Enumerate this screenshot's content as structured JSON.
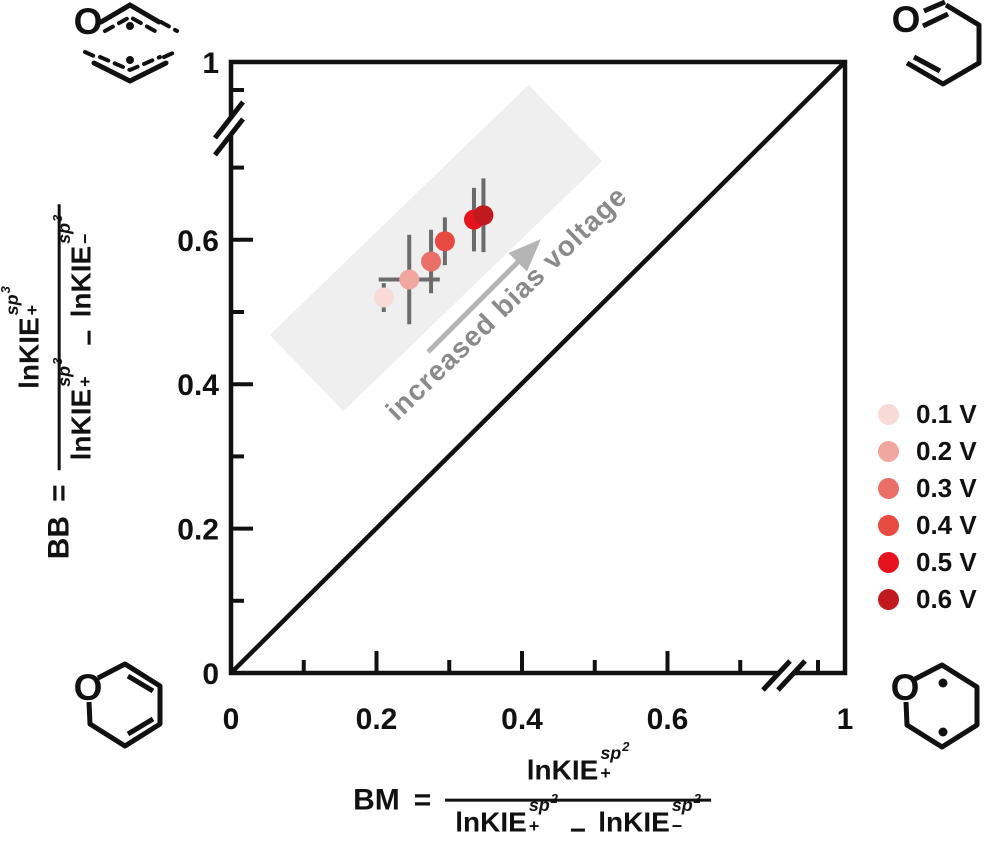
{
  "figure": {
    "annotation": {
      "text": "increased bias voltage",
      "color": "#8a8a8a"
    },
    "arrow_color": "#b5b5b5",
    "highlight_band_color": "#efefef",
    "error_bar_color": "#6b6b6b",
    "axis_color": "#111111"
  },
  "chart_data": {
    "type": "scatter",
    "title": "",
    "xlabel": "BM = lnKIE+(sp2) / (lnKIE+(sp2) - lnKIE-(sp2))",
    "ylabel": "BB = lnKIE+(sp3) / (lnKIE+(sp3) - lnKIE-(sp3))",
    "xlim": [
      0,
      1
    ],
    "ylim": [
      0,
      1
    ],
    "grid": false,
    "legend_position": "right-outside",
    "axis_breaks": {
      "x": [
        0.75,
        0.95
      ],
      "y": [
        0.75,
        0.95
      ]
    },
    "identity_line": {
      "from": [
        0,
        0
      ],
      "to": [
        1,
        1
      ]
    },
    "x_axis": {
      "ticks": [
        {
          "v": 0,
          "label": "0",
          "type": "label-only"
        },
        {
          "v": 0.1,
          "type": "minor"
        },
        {
          "v": 0.2,
          "label": "0.2",
          "type": "major"
        },
        {
          "v": 0.3,
          "type": "minor"
        },
        {
          "v": 0.4,
          "label": "0.4",
          "type": "major"
        },
        {
          "v": 0.5,
          "type": "minor"
        },
        {
          "v": 0.6,
          "label": "0.6",
          "type": "major"
        },
        {
          "v": 0.7,
          "type": "minor"
        }
      ],
      "end_label": "1"
    },
    "y_axis": {
      "ticks": [
        {
          "v": 0,
          "label": "0",
          "type": "label-only"
        },
        {
          "v": 0.1,
          "type": "minor"
        },
        {
          "v": 0.2,
          "label": "0.2",
          "type": "major"
        },
        {
          "v": 0.3,
          "type": "minor"
        },
        {
          "v": 0.4,
          "label": "0.4",
          "type": "major"
        },
        {
          "v": 0.5,
          "type": "minor"
        },
        {
          "v": 0.6,
          "label": "0.6",
          "type": "major"
        },
        {
          "v": 0.7,
          "type": "minor"
        }
      ],
      "end_label": "1"
    },
    "series": [
      {
        "label": "0.1 V",
        "color": "#f8dbd7",
        "x": 0.21,
        "y": 0.52,
        "xerr": 0,
        "yerr": 0.02
      },
      {
        "label": "0.2 V",
        "color": "#f2a6a0",
        "x": 0.245,
        "y": 0.545,
        "xerr": 0.042,
        "yerr": 0.062
      },
      {
        "label": "0.3 V",
        "color": "#ea6f68",
        "x": 0.275,
        "y": 0.57,
        "xerr": 0.011,
        "yerr": 0.044
      },
      {
        "label": "0.4 V",
        "color": "#e74a41",
        "x": 0.294,
        "y": 0.598,
        "xerr": 0,
        "yerr": 0.033
      },
      {
        "label": "0.5 V",
        "color": "#e6131f",
        "x": 0.334,
        "y": 0.628,
        "xerr": 0.009,
        "yerr": 0.044
      },
      {
        "label": "0.6 V",
        "color": "#c11a1e",
        "x": 0.347,
        "y": 0.634,
        "xerr": 0.009,
        "yerr": 0.051
      }
    ]
  },
  "formulas": {
    "x": {
      "lhs": "BM",
      "eq": "=",
      "num": {
        "base": "lnKIE",
        "sup": "sp",
        "exp": "2",
        "sub": "+"
      },
      "den1": {
        "base": "lnKIE",
        "sup": "sp",
        "exp": "2",
        "sub": "+"
      },
      "minus": "−",
      "den2": {
        "base": "lnKIE",
        "sup": "sp",
        "exp": "2",
        "sub": "−"
      }
    },
    "y": {
      "lhs": "BB",
      "eq": "=",
      "num": {
        "base": "lnKIE",
        "sup": "sp",
        "exp": "3",
        "sub": "+"
      },
      "den1": {
        "base": "lnKIE",
        "sup": "sp",
        "exp": "3",
        "sub": "+"
      },
      "minus": "−",
      "den2": {
        "base": "lnKIE",
        "sup": "sp",
        "exp": "3",
        "sub": "−"
      }
    }
  },
  "molecules": {
    "top_left": {
      "atom_label": "O",
      "name": "delocalized pyranyl radical (resonance structure)"
    },
    "top_right": {
      "atom_label": "O",
      "name": "4-pentenal"
    },
    "bottom_left": {
      "atom_label": "O",
      "name": "2H-pyran"
    },
    "bottom_right": {
      "atom_label": "O",
      "name": "tetrahydropyranyl diradical"
    }
  }
}
